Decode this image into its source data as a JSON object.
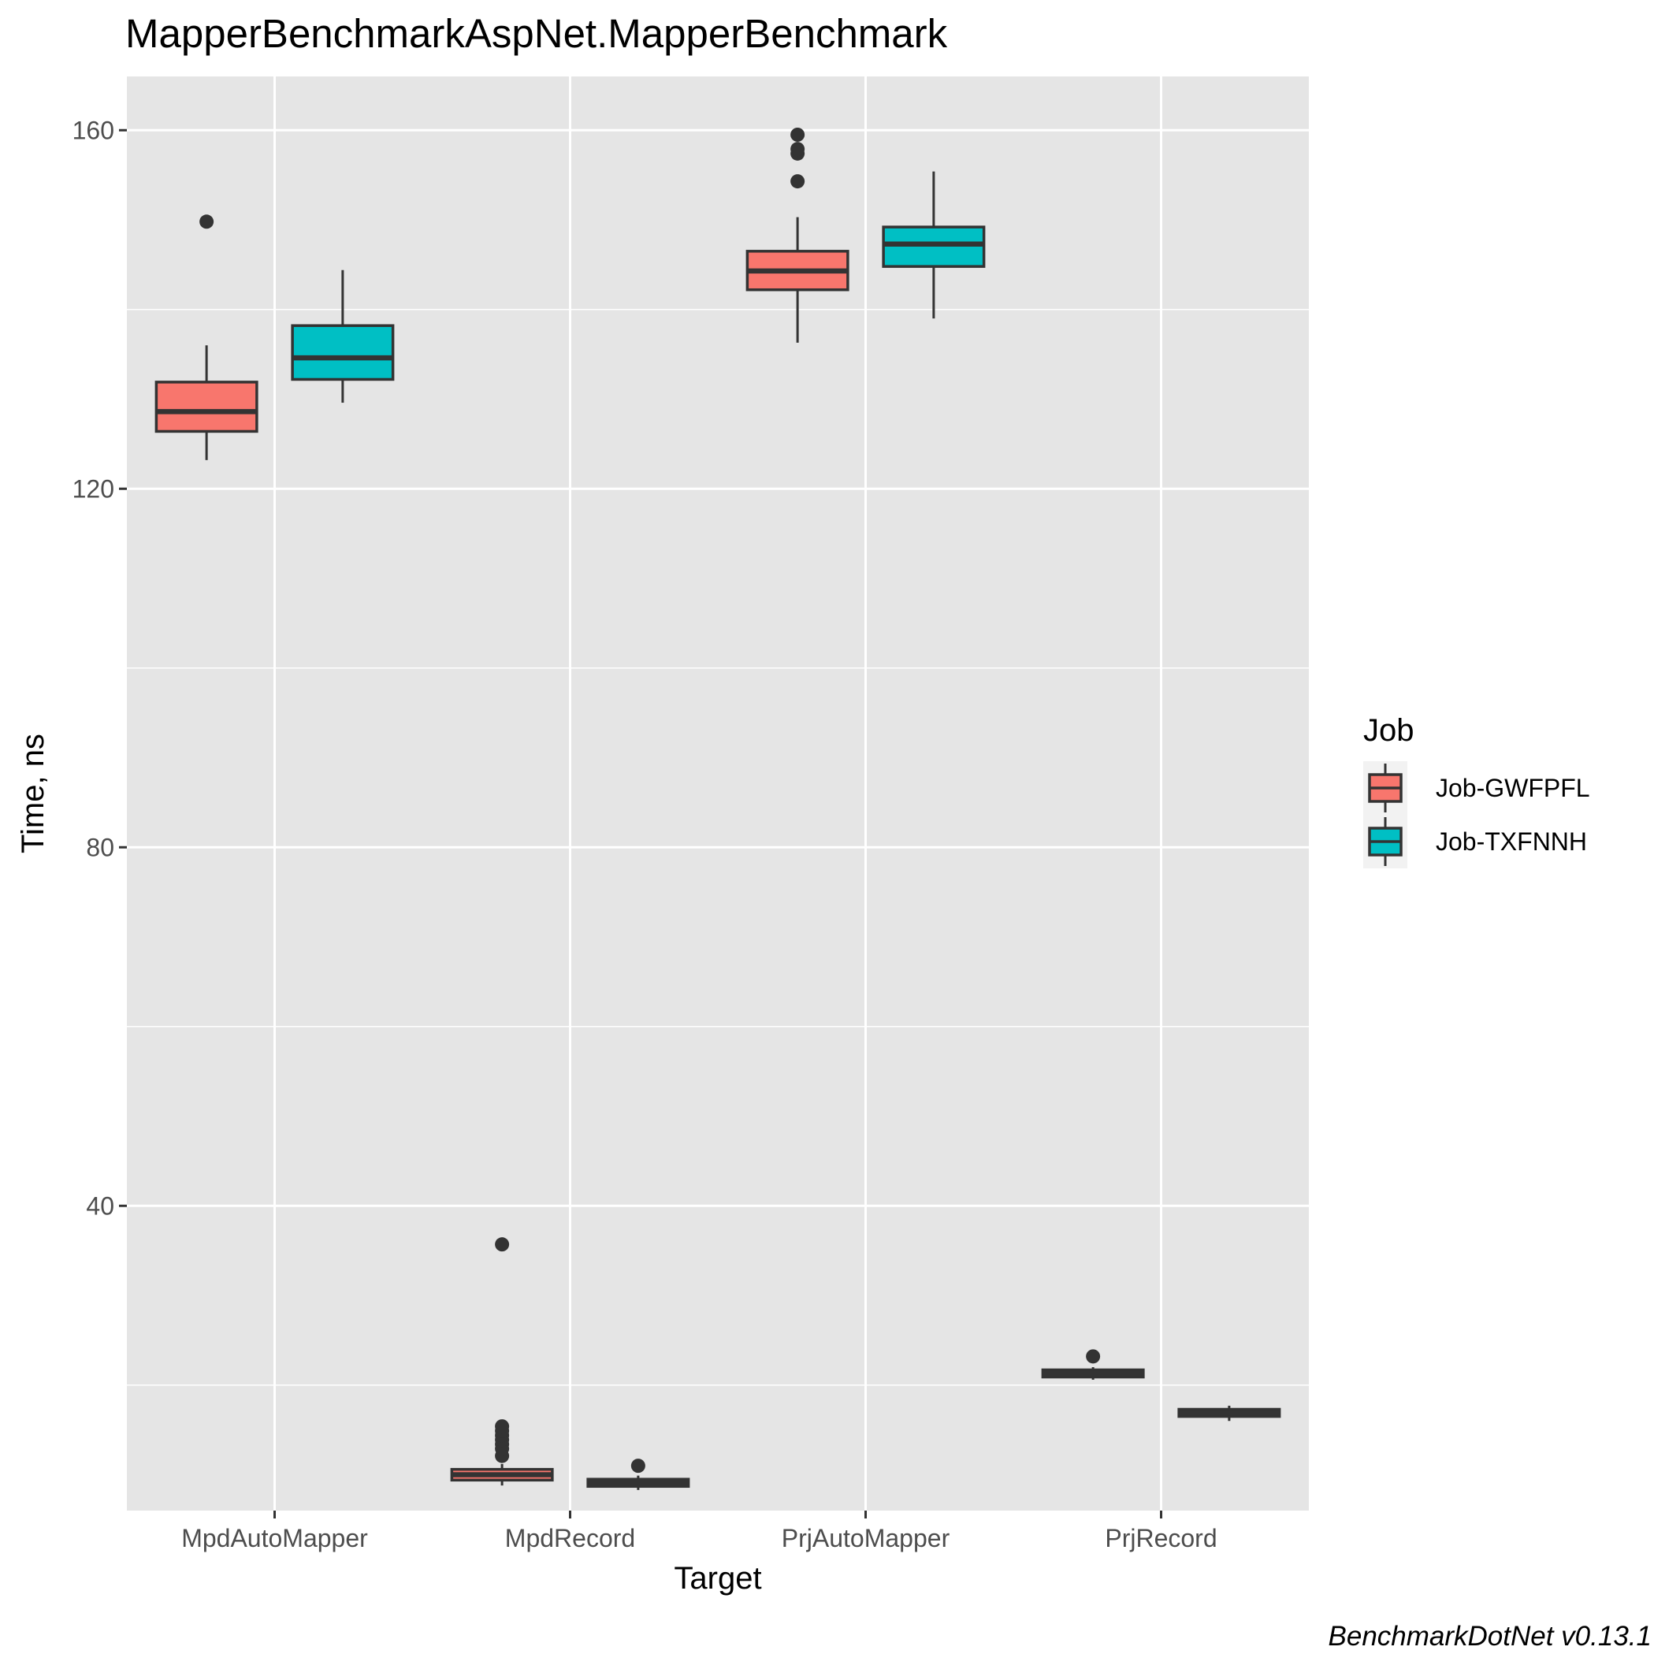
{
  "chart_data": {
    "type": "boxplot",
    "title": "MapperBenchmarkAspNet.MapperBenchmark",
    "xlabel": "Target",
    "ylabel": "Time, ns",
    "caption": "BenchmarkDotNet v0.13.1",
    "categories": [
      "MpdAutoMapper",
      "MpdRecord",
      "PrjAutoMapper",
      "PrjRecord"
    ],
    "y_ticks": [
      40,
      80,
      120,
      160
    ],
    "ylim": [
      6,
      166
    ],
    "grid": true,
    "legend": {
      "title": "Job",
      "position": "right"
    },
    "series": [
      {
        "name": "Job-GWFPFL",
        "color": "#F8766D",
        "boxes": [
          {
            "category": "MpdAutoMapper",
            "min": 123.2,
            "q1": 126.4,
            "median": 128.6,
            "q3": 131.9,
            "max": 136.0,
            "outliers": [
              149.8
            ]
          },
          {
            "category": "MpdRecord",
            "min": 8.8,
            "q1": 9.4,
            "median": 10.0,
            "q3": 10.6,
            "max": 11.2,
            "outliers": [
              12.1,
              12.9,
              13.4,
              13.9,
              14.4,
              14.9,
              15.4,
              35.7
            ]
          },
          {
            "category": "PrjAutoMapper",
            "min": 136.3,
            "q1": 142.2,
            "median": 144.3,
            "q3": 146.5,
            "max": 150.3,
            "outliers": [
              154.3,
              157.4,
              157.9,
              159.5
            ]
          },
          {
            "category": "PrjRecord",
            "min": 20.6,
            "q1": 20.9,
            "median": 21.3,
            "q3": 21.7,
            "max": 22.0,
            "outliers": [
              23.2
            ]
          }
        ]
      },
      {
        "name": "Job-TXFNNH",
        "color": "#00BFC4",
        "boxes": [
          {
            "category": "MpdAutoMapper",
            "min": 129.6,
            "q1": 132.2,
            "median": 134.6,
            "q3": 138.2,
            "max": 144.4,
            "outliers": []
          },
          {
            "category": "MpdRecord",
            "min": 8.3,
            "q1": 8.7,
            "median": 9.1,
            "q3": 9.5,
            "max": 9.9,
            "outliers": [
              11.0
            ]
          },
          {
            "category": "PrjAutoMapper",
            "min": 139.0,
            "q1": 144.8,
            "median": 147.3,
            "q3": 149.2,
            "max": 155.4,
            "outliers": []
          },
          {
            "category": "PrjRecord",
            "min": 16.0,
            "q1": 16.5,
            "median": 16.9,
            "q3": 17.3,
            "max": 17.7,
            "outliers": []
          }
        ]
      }
    ]
  }
}
